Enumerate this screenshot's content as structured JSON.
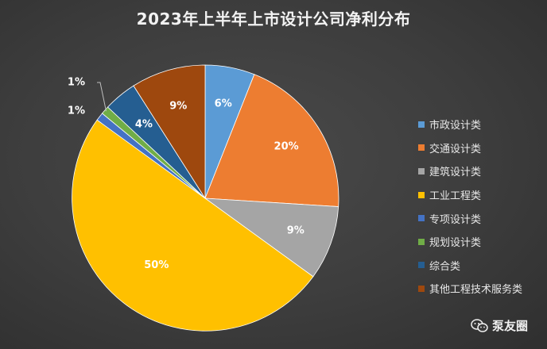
{
  "title": "2023年上半年上市设计公司净利分布",
  "chart_data": {
    "type": "pie",
    "categories": [
      "市政设计类",
      "交通设计类",
      "建筑设计类",
      "工业工程类",
      "专项设计类",
      "规划设计类",
      "综合类",
      "其他工程技术服务类"
    ],
    "values": [
      6,
      20,
      9,
      50,
      1,
      1,
      4,
      9
    ],
    "labels": [
      "6%",
      "20%",
      "9%",
      "50%",
      "1%",
      "1%",
      "4%",
      "9%"
    ],
    "colors": [
      "#5b9bd5",
      "#ed7d31",
      "#a5a5a5",
      "#ffc000",
      "#4472c4",
      "#70ad47",
      "#255e91",
      "#9e480e"
    ],
    "legend": "right"
  },
  "watermark": {
    "text": "泵友圈",
    "icon": "wechat-icon"
  }
}
